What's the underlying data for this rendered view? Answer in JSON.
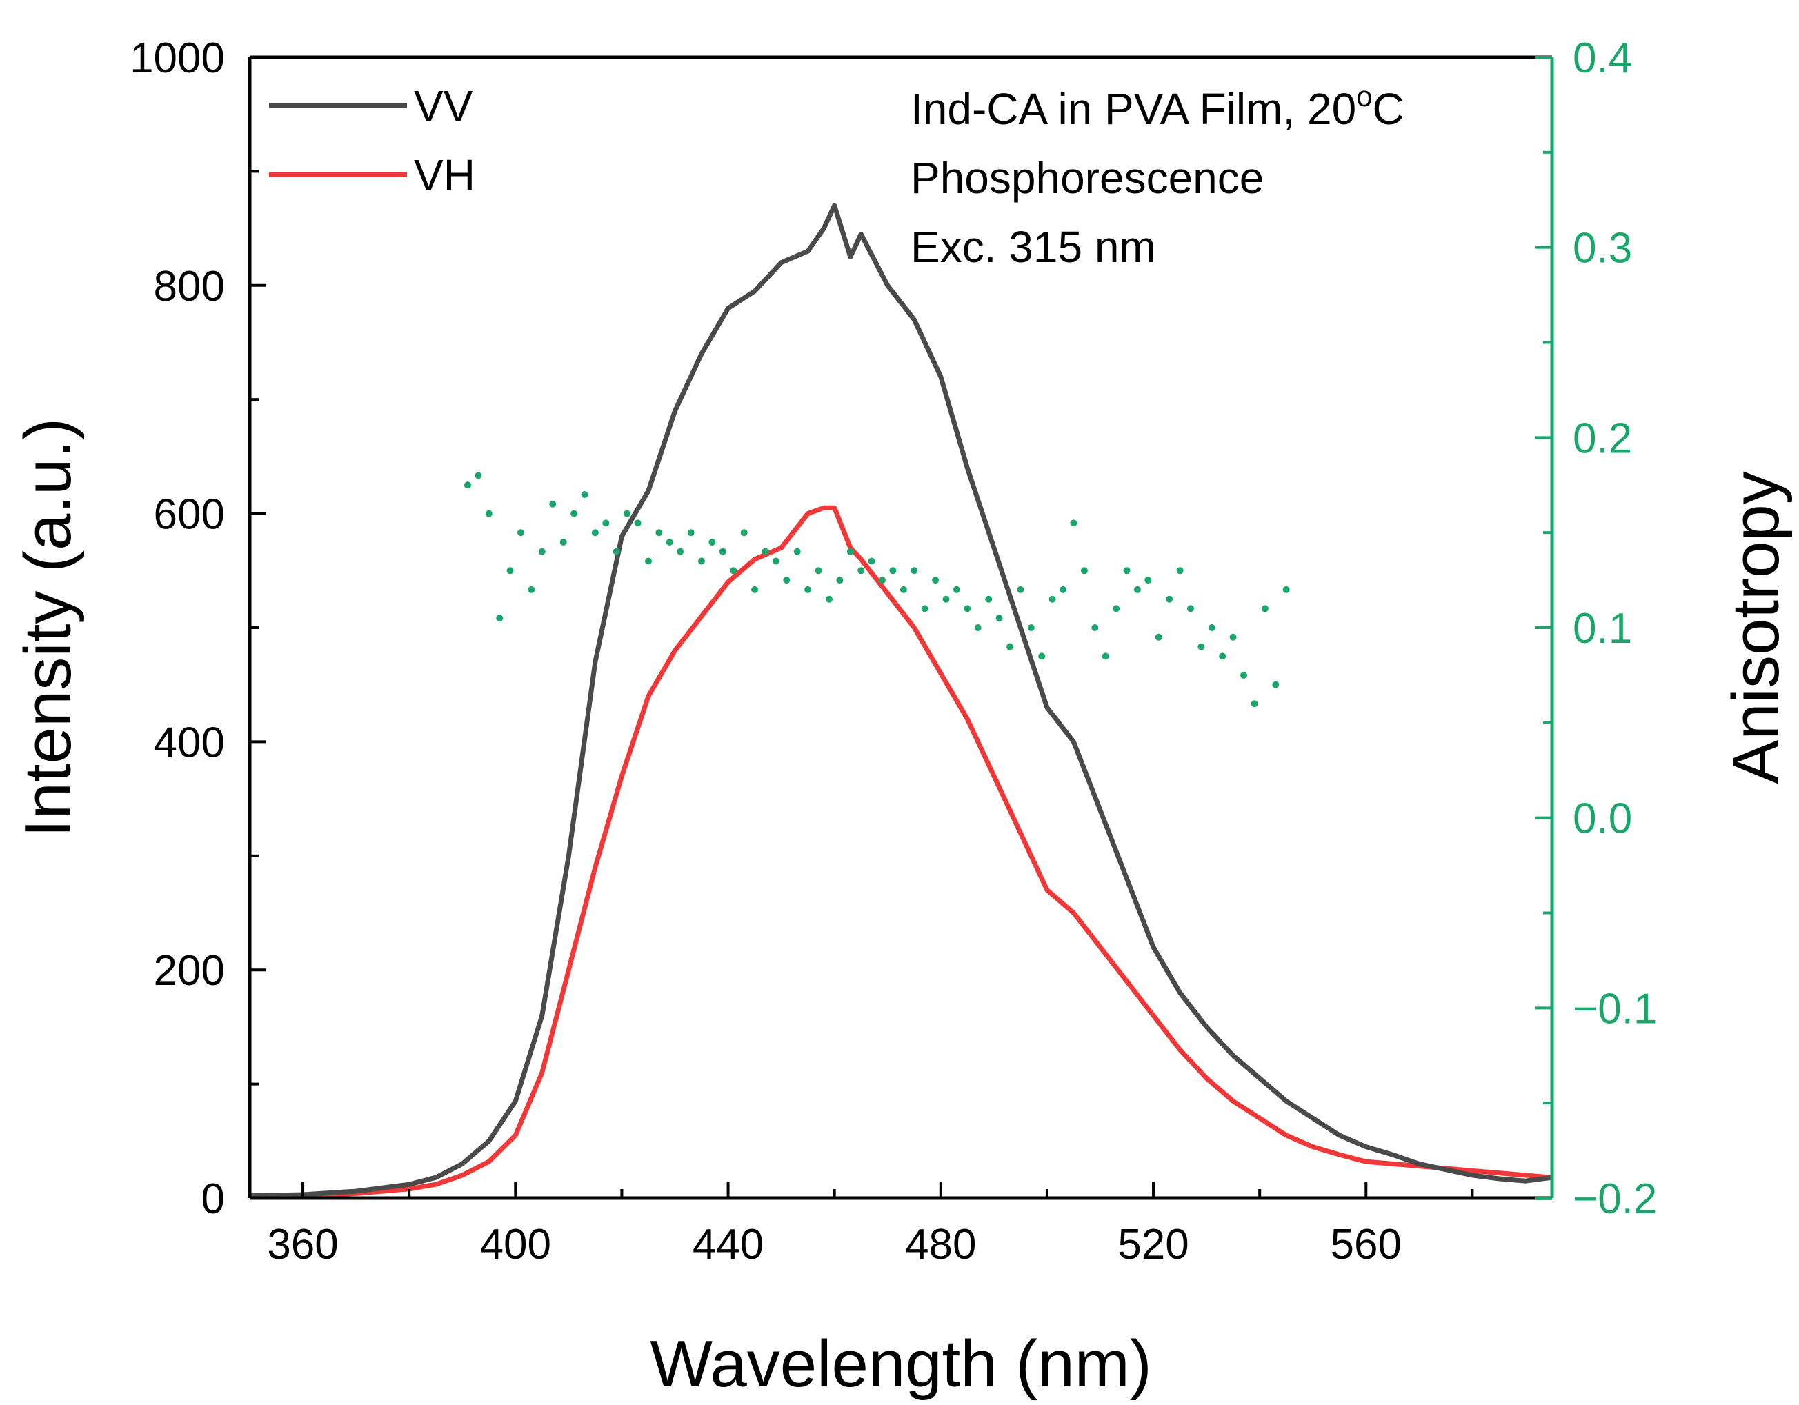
{
  "chart_data": {
    "type": "line",
    "title": "",
    "xlabel": "Wavelength (nm)",
    "ylabel": "Intensity (a.u.)",
    "y2label": "Anisotropy",
    "xlim": [
      350,
      595
    ],
    "ylim": [
      0,
      1000
    ],
    "y2lim": [
      -0.2,
      0.4
    ],
    "xticks": [
      360,
      400,
      440,
      480,
      520,
      560
    ],
    "yticks": [
      0,
      200,
      400,
      600,
      800,
      1000
    ],
    "y2ticks": [
      -0.2,
      -0.1,
      0.0,
      0.1,
      0.2,
      0.3,
      0.4
    ],
    "y2tick_labels": [
      "−0.2",
      "−0.1",
      "0.0",
      "0.1",
      "0.2",
      "0.3",
      "0.4"
    ],
    "legend_position": "top-left",
    "annotations": {
      "line1": "Ind-CA in PVA Film, 20",
      "line1_sup": "o",
      "line1_end": "C",
      "line2": "Phosphorescence",
      "line3": "Exc. 315 nm"
    },
    "colors": {
      "VV": "#4a4a4a",
      "VH": "#f03838",
      "Anisotropy": "#1aa66a",
      "right_axis": "#1aa66a"
    },
    "series": [
      {
        "name": "VV",
        "axis": "left",
        "x": [
          350,
          360,
          370,
          380,
          385,
          390,
          395,
          400,
          405,
          410,
          415,
          420,
          425,
          430,
          435,
          440,
          445,
          450,
          455,
          458,
          460,
          463,
          465,
          470,
          475,
          480,
          485,
          490,
          495,
          500,
          505,
          510,
          515,
          520,
          525,
          530,
          535,
          540,
          545,
          550,
          555,
          560,
          565,
          570,
          575,
          580,
          585,
          590,
          595
        ],
        "values": [
          2,
          3,
          6,
          12,
          18,
          30,
          50,
          85,
          160,
          300,
          470,
          580,
          620,
          690,
          740,
          780,
          795,
          820,
          830,
          850,
          870,
          825,
          845,
          800,
          770,
          720,
          640,
          570,
          500,
          430,
          400,
          340,
          280,
          220,
          180,
          150,
          125,
          105,
          85,
          70,
          55,
          45,
          38,
          30,
          25,
          20,
          17,
          15,
          18
        ]
      },
      {
        "name": "VH",
        "axis": "left",
        "x": [
          350,
          360,
          370,
          380,
          385,
          390,
          395,
          400,
          405,
          410,
          415,
          420,
          425,
          430,
          435,
          440,
          445,
          450,
          455,
          458,
          460,
          463,
          465,
          470,
          475,
          480,
          485,
          490,
          495,
          500,
          505,
          510,
          515,
          520,
          525,
          530,
          535,
          540,
          545,
          550,
          555,
          560,
          565,
          570,
          575,
          580,
          585,
          590,
          595
        ],
        "values": [
          1,
          2,
          4,
          8,
          12,
          20,
          32,
          55,
          110,
          200,
          290,
          370,
          440,
          480,
          510,
          540,
          560,
          570,
          600,
          605,
          605,
          570,
          560,
          530,
          500,
          460,
          420,
          370,
          320,
          270,
          250,
          220,
          190,
          160,
          130,
          105,
          85,
          70,
          55,
          45,
          38,
          32,
          30,
          28,
          26,
          24,
          22,
          20,
          18
        ]
      },
      {
        "name": "Anisotropy",
        "axis": "right",
        "style": "dots",
        "x": [
          391,
          393,
          395,
          397,
          399,
          401,
          403,
          405,
          407,
          409,
          411,
          413,
          415,
          417,
          419,
          421,
          423,
          425,
          427,
          429,
          431,
          433,
          435,
          437,
          439,
          441,
          443,
          445,
          447,
          449,
          451,
          453,
          455,
          457,
          459,
          461,
          463,
          465,
          467,
          469,
          471,
          473,
          475,
          477,
          479,
          481,
          483,
          485,
          487,
          489,
          491,
          493,
          495,
          497,
          499,
          501,
          503,
          505,
          507,
          509,
          511,
          513,
          515,
          517,
          519,
          521,
          523,
          525,
          527,
          529,
          531,
          533,
          535,
          537,
          539,
          541,
          543,
          545
        ],
        "values": [
          0.175,
          0.18,
          0.16,
          0.105,
          0.13,
          0.15,
          0.12,
          0.14,
          0.165,
          0.145,
          0.16,
          0.17,
          0.15,
          0.155,
          0.14,
          0.16,
          0.155,
          0.135,
          0.15,
          0.145,
          0.14,
          0.15,
          0.135,
          0.145,
          0.14,
          0.13,
          0.15,
          0.12,
          0.14,
          0.135,
          0.125,
          0.14,
          0.12,
          0.13,
          0.115,
          0.125,
          0.14,
          0.13,
          0.135,
          0.125,
          0.13,
          0.12,
          0.13,
          0.11,
          0.125,
          0.115,
          0.12,
          0.11,
          0.1,
          0.115,
          0.105,
          0.09,
          0.12,
          0.1,
          0.085,
          0.115,
          0.12,
          0.155,
          0.13,
          0.1,
          0.085,
          0.11,
          0.13,
          0.12,
          0.125,
          0.095,
          0.115,
          0.13,
          0.11,
          0.09,
          0.1,
          0.085,
          0.095,
          0.075,
          0.06,
          0.11,
          0.07,
          0.12
        ]
      }
    ]
  }
}
